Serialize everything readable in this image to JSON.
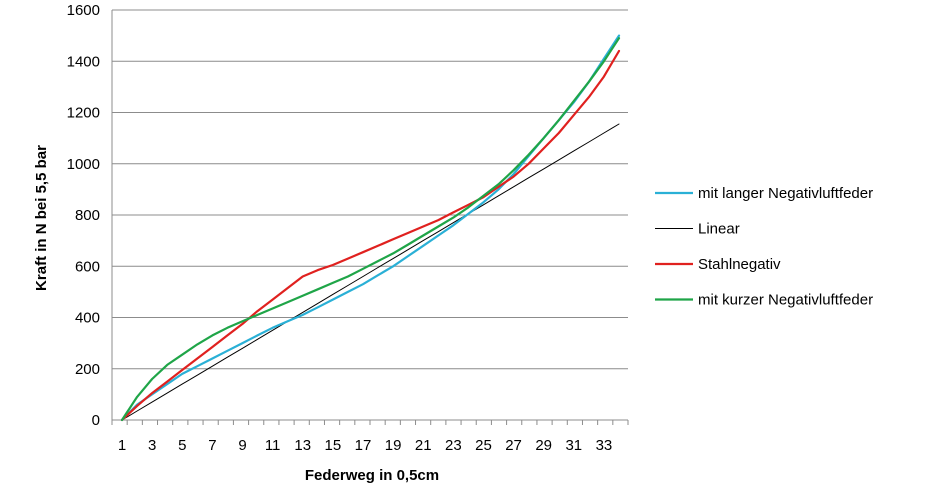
{
  "chart_data": {
    "type": "line",
    "xlabel": "Federweg in 0,5cm",
    "ylabel": "Kraft in N bei 5,5 bar",
    "ylim": [
      0,
      1600
    ],
    "yticks": [
      "0",
      "200",
      "400",
      "600",
      "800",
      "1000",
      "1200",
      "1400",
      "1600"
    ],
    "xlim": [
      1,
      34
    ],
    "xticks": [
      "1",
      "3",
      "5",
      "7",
      "9",
      "11",
      "13",
      "15",
      "17",
      "19",
      "21",
      "23",
      "25",
      "27",
      "29",
      "31",
      "33"
    ],
    "grid": true,
    "legend_position": "right",
    "x": [
      1,
      2,
      3,
      4,
      5,
      6,
      7,
      8,
      9,
      10,
      11,
      12,
      13,
      14,
      15,
      16,
      17,
      18,
      19,
      20,
      21,
      22,
      23,
      24,
      25,
      26,
      27,
      28,
      29,
      30,
      31,
      32,
      33,
      34
    ],
    "series": [
      {
        "name": "mit langer Negativluftfeder",
        "color": "#2ab0d6",
        "values": [
          0,
          60,
          100,
          140,
          180,
          210,
          240,
          270,
          300,
          330,
          360,
          385,
          410,
          440,
          470,
          500,
          530,
          565,
          600,
          640,
          680,
          720,
          760,
          805,
          850,
          900,
          960,
          1030,
          1100,
          1170,
          1240,
          1320,
          1410,
          1500
        ]
      },
      {
        "name": "Linear",
        "color": "#000000",
        "values": [
          0,
          35,
          70,
          105,
          140,
          175,
          210,
          245,
          280,
          315,
          350,
          385,
          420,
          455,
          490,
          525,
          560,
          595,
          630,
          665,
          700,
          735,
          770,
          805,
          840,
          875,
          910,
          945,
          980,
          1015,
          1050,
          1085,
          1120,
          1155
        ]
      },
      {
        "name": "Stahlnegativ",
        "color": "#e0211f",
        "values": [
          0,
          55,
          105,
          150,
          195,
          240,
          285,
          330,
          375,
          425,
          470,
          515,
          560,
          585,
          605,
          630,
          655,
          680,
          705,
          730,
          755,
          780,
          810,
          840,
          870,
          910,
          950,
          1000,
          1060,
          1120,
          1190,
          1260,
          1340,
          1440
        ]
      },
      {
        "name": "mit kurzer Negativluftfeder",
        "color": "#1fa548",
        "values": [
          0,
          90,
          160,
          215,
          255,
          295,
          330,
          360,
          385,
          410,
          435,
          460,
          485,
          510,
          535,
          560,
          590,
          620,
          650,
          685,
          720,
          755,
          790,
          830,
          875,
          920,
          975,
          1035,
          1100,
          1170,
          1245,
          1320,
          1400,
          1490
        ]
      }
    ]
  }
}
